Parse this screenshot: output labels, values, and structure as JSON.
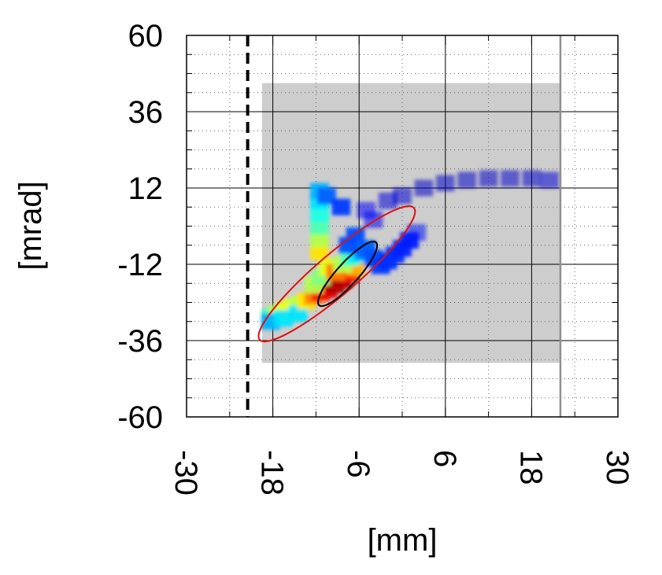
{
  "chart_data": {
    "type": "heatmap",
    "title": "",
    "xlabel": "[mm]",
    "ylabel": "[mrad]",
    "xlim": [
      -30,
      30
    ],
    "ylim": [
      -60,
      60
    ],
    "x_ticks": [
      "-30",
      "-18",
      "-6",
      "6",
      "18",
      "30"
    ],
    "y_ticks": [
      "60",
      "36",
      "12",
      "-12",
      "-36",
      "-60"
    ],
    "x_tick_values": [
      -30,
      -18,
      -6,
      6,
      18,
      30
    ],
    "y_tick_values": [
      60,
      36,
      12,
      -12,
      -36,
      -60
    ],
    "x_minor_step": 6,
    "y_minor_step": 6,
    "grid": true,
    "acceptance_region": {
      "x": [
        -19.5,
        22
      ],
      "y": [
        -43,
        45
      ],
      "color": "#c8c8c8"
    },
    "reference_lines": [
      {
        "x": -21.5,
        "style": "dashed",
        "color": "#000000"
      },
      {
        "x": 22,
        "style": "solid",
        "color": "#909090"
      }
    ],
    "ellipses": [
      {
        "name": "outer",
        "cx": -9.1,
        "cy": -15,
        "half_diag_major": [
          10.6,
          21
        ],
        "half_diag_minor": [
          -2.5,
          3.5
        ],
        "color": "#e01010"
      },
      {
        "name": "inner",
        "cx": -7.6,
        "cy": -15,
        "half_diag_major": [
          3.9,
          10
        ],
        "half_diag_minor": [
          -1.3,
          1.8
        ],
        "color": "#000000"
      }
    ],
    "density_cells": [
      {
        "x": -18.3,
        "y": -28.5,
        "v": 0.45
      },
      {
        "x": -17.3,
        "y": -27.5,
        "v": 0.55
      },
      {
        "x": -16.3,
        "y": -26.5,
        "v": 0.6
      },
      {
        "x": -15.3,
        "y": -25.5,
        "v": 0.6
      },
      {
        "x": -14.3,
        "y": -24.5,
        "v": 0.55
      },
      {
        "x": -18.3,
        "y": -30,
        "v": 0.3
      },
      {
        "x": -16.5,
        "y": -29,
        "v": 0.35
      },
      {
        "x": -14.5,
        "y": -27.5,
        "v": 0.35
      },
      {
        "x": -13.3,
        "y": -23.5,
        "v": 0.65
      },
      {
        "x": -12.3,
        "y": -22,
        "v": 0.75
      },
      {
        "x": -11.3,
        "y": -21,
        "v": 0.85
      },
      {
        "x": -10.3,
        "y": -20,
        "v": 0.9
      },
      {
        "x": -9.3,
        "y": -18.5,
        "v": 0.95
      },
      {
        "x": -8.3,
        "y": -17,
        "v": 0.95
      },
      {
        "x": -7.3,
        "y": -15,
        "v": 0.85
      },
      {
        "x": -6.5,
        "y": -13,
        "v": 0.7
      },
      {
        "x": -12.3,
        "y": -18.5,
        "v": 0.55
      },
      {
        "x": -11.3,
        "y": -16,
        "v": 0.5
      },
      {
        "x": -10.3,
        "y": -13,
        "v": 0.6
      },
      {
        "x": -9.3,
        "y": -14.5,
        "v": 0.75
      },
      {
        "x": -8.3,
        "y": -12,
        "v": 0.55
      },
      {
        "x": -7.3,
        "y": -10,
        "v": 0.45
      },
      {
        "x": -6.3,
        "y": -9,
        "v": 0.35
      },
      {
        "x": -5.3,
        "y": -8,
        "v": 0.25
      },
      {
        "x": -11.5,
        "y": -8,
        "v": 0.65
      },
      {
        "x": -11.5,
        "y": -4,
        "v": 0.55
      },
      {
        "x": -11.5,
        "y": 0,
        "v": 0.45
      },
      {
        "x": -11.5,
        "y": 4,
        "v": 0.4
      },
      {
        "x": -11.5,
        "y": 8,
        "v": 0.35
      },
      {
        "x": -11.5,
        "y": 11,
        "v": 0.3
      },
      {
        "x": -10.5,
        "y": 9.5,
        "v": 0.22
      },
      {
        "x": -8.5,
        "y": 6,
        "v": 0.18
      },
      {
        "x": -7.5,
        "y": -6,
        "v": 0.2
      },
      {
        "x": -6.5,
        "y": -3,
        "v": 0.2
      },
      {
        "x": -5,
        "y": -7,
        "v": 0.22
      },
      {
        "x": -4,
        "y": -10,
        "v": 0.2
      },
      {
        "x": -3,
        "y": -12.5,
        "v": 0.18
      },
      {
        "x": -2,
        "y": -11,
        "v": 0.17
      },
      {
        "x": -1,
        "y": -9,
        "v": 0.17
      },
      {
        "x": 0,
        "y": -7,
        "v": 0.16
      },
      {
        "x": 1,
        "y": -4.5,
        "v": 0.15
      },
      {
        "x": 2,
        "y": -2,
        "v": 0.14
      },
      {
        "x": -5,
        "y": 5,
        "v": 0.12
      },
      {
        "x": -4,
        "y": 2,
        "v": 0.12
      },
      {
        "x": -2,
        "y": 8,
        "v": 0.09
      },
      {
        "x": 0,
        "y": 9.5,
        "v": 0.08
      },
      {
        "x": 3,
        "y": 12,
        "v": 0.07
      },
      {
        "x": 6,
        "y": 13.5,
        "v": 0.07
      },
      {
        "x": 9,
        "y": 14.5,
        "v": 0.07
      },
      {
        "x": 12,
        "y": 15,
        "v": 0.07
      },
      {
        "x": 15,
        "y": 15,
        "v": 0.07
      },
      {
        "x": 18,
        "y": 15,
        "v": 0.07
      },
      {
        "x": 20.5,
        "y": 14.5,
        "v": 0.08
      }
    ]
  }
}
